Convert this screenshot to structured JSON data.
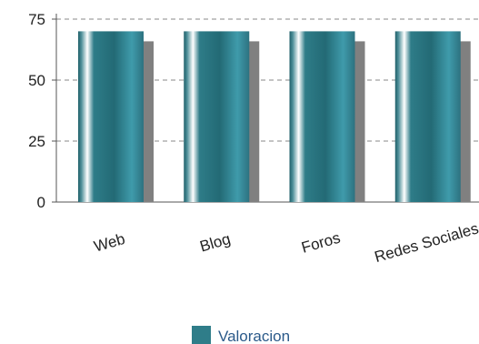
{
  "colors": {
    "bar": "#2f7d89",
    "bar_shadow": "#808080",
    "axis": "#555555",
    "grid": "#888888",
    "text": "#222222",
    "legend_text": "#2b5a8a"
  },
  "chart_data": {
    "type": "bar",
    "categories": [
      "Web",
      "Blog",
      "Foros",
      "Redes Sociales"
    ],
    "series": [
      {
        "name": "Valoracion",
        "values": [
          70,
          70,
          70,
          70
        ]
      }
    ],
    "ylim": [
      0,
      75
    ],
    "yticks": [
      0,
      25,
      50,
      75
    ],
    "grid": true,
    "legend_position": "bottom"
  }
}
